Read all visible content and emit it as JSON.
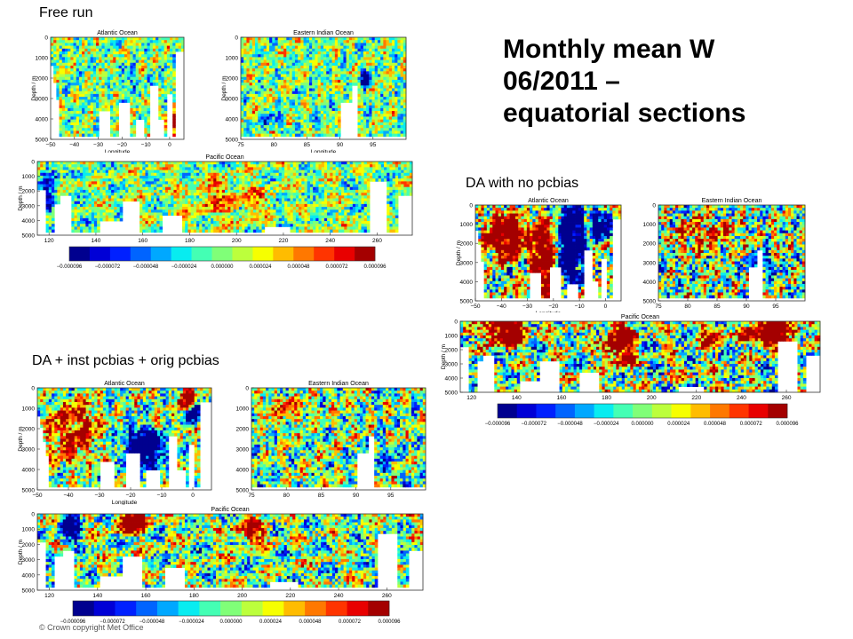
{
  "slide": {
    "title_lines": [
      "Monthly mean W",
      "06/2011 –",
      "equatorial sections"
    ],
    "copyright": "© Crown copyright Met Office"
  },
  "colorbar": {
    "tick_labels": [
      "−0.000096",
      "−0.000072",
      "−0.000048",
      "−0.000024",
      "0.000000",
      "0.000024",
      "0.000048",
      "0.000072",
      "0.000096"
    ],
    "colors": [
      "#00008f",
      "#0000d6",
      "#0020ff",
      "#0064ff",
      "#00a8ff",
      "#08ecf0",
      "#44ffb4",
      "#80ff78",
      "#bcff3c",
      "#f6ff00",
      "#ffbc00",
      "#ff7800",
      "#ff3400",
      "#e80000",
      "#a40000"
    ]
  },
  "chart_data": [
    {
      "type": "heatmap",
      "caption": "Free run",
      "style": "free",
      "panels": [
        {
          "title": "Atlantic Ocean",
          "xlabel": "Longitude",
          "ylabel": "Depth / m",
          "xticks": [
            "−50",
            "−40",
            "−30",
            "−20",
            "−10",
            "0"
          ],
          "yticks": [
            "0",
            "1000",
            "2000",
            "3000",
            "4000",
            "5000"
          ],
          "xlim": [
            -50,
            6
          ],
          "ylim": [
            5000,
            0
          ]
        },
        {
          "title": "Eastern Indian Ocean",
          "xlabel": "Longitude",
          "ylabel": "Depth / m",
          "xticks": [
            "75",
            "80",
            "85",
            "90",
            "95"
          ],
          "yticks": [
            "0",
            "1000",
            "2000",
            "3000",
            "4000",
            "5000"
          ],
          "xlim": [
            75,
            100
          ],
          "ylim": [
            5000,
            0
          ]
        },
        {
          "title": "Pacific Ocean",
          "xlabel": "",
          "ylabel": "Depth / m",
          "xticks": [
            "120",
            "140",
            "160",
            "180",
            "200",
            "220",
            "240",
            "260"
          ],
          "yticks": [
            "0",
            "1000",
            "2000",
            "3000",
            "4000",
            "5000"
          ],
          "xlim": [
            115,
            275
          ],
          "ylim": [
            5000,
            0
          ]
        }
      ],
      "colorbar_range": [
        -9.6e-05,
        9.6e-05
      ]
    },
    {
      "type": "heatmap",
      "caption": "DA with no pcbias",
      "style": "nopc",
      "panels": [
        {
          "title": "Atlantic Ocean",
          "xlabel": "Longitude",
          "ylabel": "Depth / m",
          "xticks": [
            "−50",
            "−40",
            "−30",
            "−20",
            "−10",
            "0"
          ],
          "yticks": [
            "0",
            "1000",
            "2000",
            "3000",
            "4000",
            "5000"
          ],
          "xlim": [
            -50,
            6
          ],
          "ylim": [
            5000,
            0
          ]
        },
        {
          "title": "Eastern Indian Ocean",
          "xlabel": "",
          "ylabel": "",
          "xticks": [
            "75",
            "80",
            "85",
            "90",
            "95"
          ],
          "yticks": [
            "0",
            "1000",
            "2000",
            "3000",
            "4000",
            "5000"
          ],
          "xlim": [
            75,
            100
          ],
          "ylim": [
            5000,
            0
          ]
        },
        {
          "title": "Pacific Ocean",
          "xlabel": "",
          "ylabel": "Depth / m",
          "xticks": [
            "120",
            "140",
            "160",
            "180",
            "200",
            "220",
            "240",
            "260"
          ],
          "yticks": [
            "0",
            "1000",
            "2000",
            "3000",
            "4000",
            "5000"
          ],
          "xlim": [
            115,
            275
          ],
          "ylim": [
            5000,
            0
          ]
        }
      ],
      "colorbar_range": [
        -9.6e-05,
        9.6e-05
      ]
    },
    {
      "type": "heatmap",
      "caption": "DA + inst pcbias + orig pcbias",
      "style": "inst",
      "panels": [
        {
          "title": "Atlantic Ocean",
          "xlabel": "Longitude",
          "ylabel": "Depth / m",
          "xticks": [
            "−50",
            "−40",
            "−30",
            "−20",
            "−10",
            "0"
          ],
          "yticks": [
            "0",
            "1000",
            "2000",
            "3000",
            "4000",
            "5000"
          ],
          "xlim": [
            -50,
            6
          ],
          "ylim": [
            5000,
            0
          ]
        },
        {
          "title": "Eastern Indian Ocean",
          "xlabel": "",
          "ylabel": "",
          "xticks": [
            "75",
            "80",
            "85",
            "90",
            "95"
          ],
          "yticks": [
            "0",
            "1000",
            "2000",
            "3000",
            "4000",
            "5000"
          ],
          "xlim": [
            75,
            100
          ],
          "ylim": [
            5000,
            0
          ]
        },
        {
          "title": "Pacific Ocean",
          "xlabel": "",
          "ylabel": "Depth / m",
          "xticks": [
            "120",
            "140",
            "160",
            "180",
            "200",
            "220",
            "240",
            "260"
          ],
          "yticks": [
            "0",
            "1000",
            "2000",
            "3000",
            "4000",
            "5000"
          ],
          "xlim": [
            115,
            275
          ],
          "ylim": [
            5000,
            0
          ]
        }
      ],
      "colorbar_range": [
        -9.6e-05,
        9.6e-05
      ]
    }
  ]
}
